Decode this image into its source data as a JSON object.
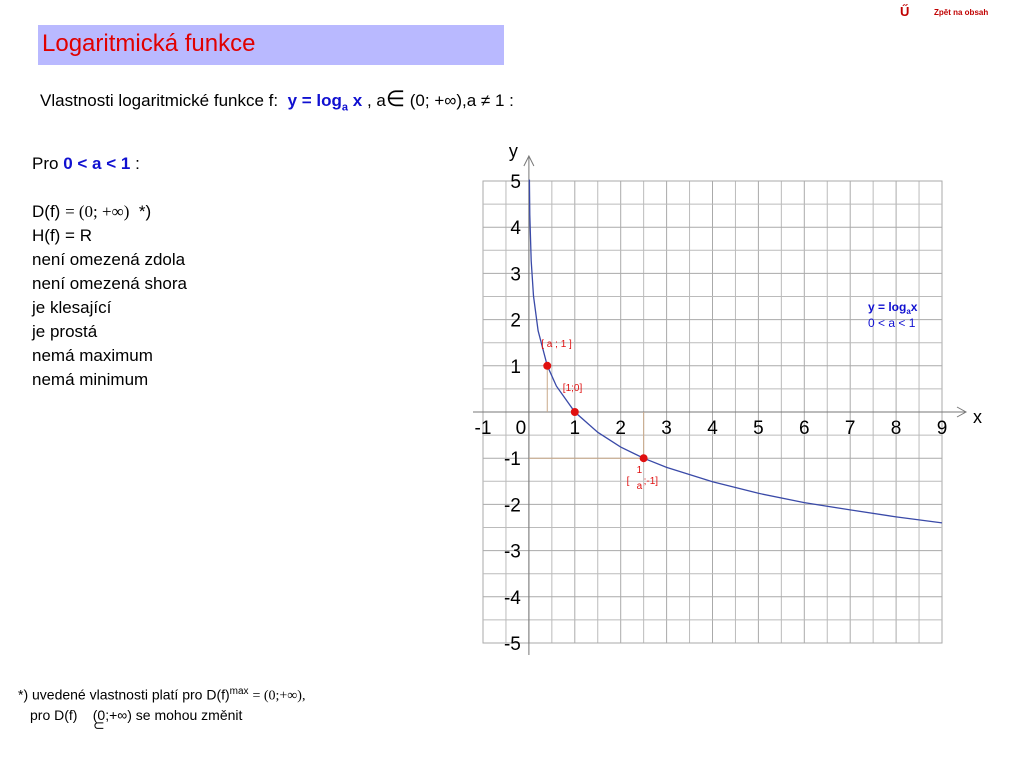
{
  "nav": {
    "icon": "Ű",
    "back": "Zpět na obsah"
  },
  "header": {
    "title": "Logaritmická  funkce"
  },
  "intro": {
    "text": "Vlastnosti logaritmické funkce f:",
    "formula": "y = log",
    "base": "a",
    "var": "x",
    "sep": ", a",
    "member": "∈",
    "rest": "(0; +∞),a ≠ 1 :"
  },
  "properties": {
    "prefix": "Pro",
    "condition": "0 < a < 1",
    "colon": ":",
    "domain": "D(f)",
    "domain_value": "= (0; +∞)",
    "star": "*)",
    "items": [
      "H(f) = R",
      "není omezená zdola",
      "není omezená shora",
      "je  klesající",
      "je prostá",
      "nemá maximum",
      "nemá minimum"
    ]
  },
  "footnote": {
    "line1": "*) uvedené vlastnosti platí pro D(f)",
    "sup": "max",
    "line1_end": "= (0;+∞),",
    "line2_start": "pro D(f)",
    "subset": "⊂",
    "line2_end": "(0;+∞) se mohou změnit"
  },
  "chart_data": {
    "type": "line",
    "color": "#3a4aa8",
    "x_label": "x",
    "y_label": "y",
    "legend": {
      "text": "y = log",
      "sub": "a",
      "var": "x",
      "cond": "0 < a < 1"
    },
    "x": [
      0.01,
      0.02,
      0.05,
      0.1,
      0.2,
      0.4,
      0.6,
      1,
      1.5,
      2,
      2.5,
      3,
      4,
      5,
      6,
      7,
      8,
      9
    ],
    "values": [
      5.03,
      4.27,
      3.27,
      2.51,
      1.76,
      1,
      0.56,
      0,
      -0.44,
      -0.76,
      -1,
      -1.2,
      -1.51,
      -1.76,
      -1.96,
      -2.12,
      -2.27,
      -2.4
    ],
    "points": [
      {
        "x": 0.4,
        "y": 1,
        "label": "[ a ; 1 ]"
      },
      {
        "x": 1,
        "y": 0,
        "label": "[1;0]"
      },
      {
        "x": 2.5,
        "y": -1,
        "label_open": "[",
        "num": "1",
        "den": "a",
        "label_close": ";-1]"
      }
    ],
    "point_color": "#e01010",
    "xlim": [
      -1,
      9
    ],
    "ylim": [
      -5,
      5
    ],
    "xticks": [
      -1,
      0,
      1,
      2,
      3,
      4,
      5,
      6,
      7,
      8,
      9
    ],
    "yticks": [
      -5,
      -4,
      -3,
      -2,
      -1,
      1,
      2,
      3,
      4,
      5
    ],
    "grid": true
  }
}
